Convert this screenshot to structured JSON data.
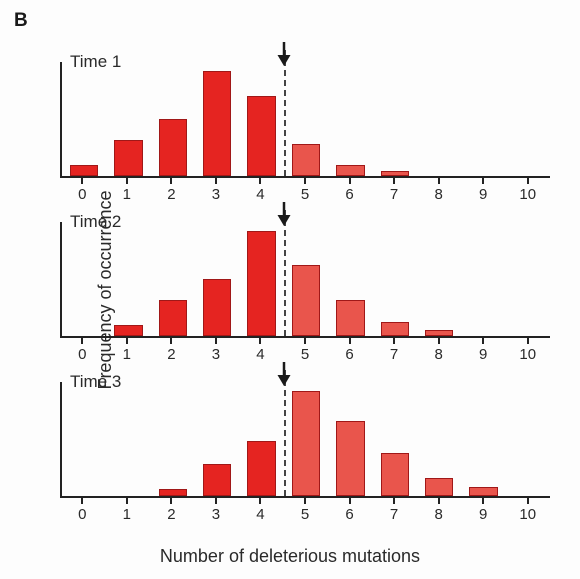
{
  "panel_letter": "B",
  "ylabel_text": "Frequency  of occurrence",
  "xlabel_text": "Number of deleterious mutations",
  "axis_color": "#222222",
  "background_color": "#fdfdfd",
  "bar_border_color": "#a01818",
  "bar_fill_left": "#e52421",
  "bar_fill_right": "#e9554c",
  "categories": [
    "0",
    "1",
    "2",
    "3",
    "4",
    "5",
    "6",
    "7",
    "8",
    "9",
    "10"
  ],
  "divider_index": 4.5,
  "ymax": 100,
  "font_family": "Arial",
  "tick_fontsize": 15,
  "label_fontsize": 18,
  "time_fontsize": 17,
  "panel_fontsize": 19,
  "charts": [
    {
      "time_label": "Time 1",
      "values": [
        10,
        32,
        50,
        92,
        70,
        28,
        10,
        4,
        0,
        0,
        0
      ]
    },
    {
      "time_label": "Time 2",
      "values": [
        0,
        10,
        32,
        50,
        92,
        62,
        32,
        12,
        5,
        0,
        0
      ]
    },
    {
      "time_label": "Time 3",
      "values": [
        0,
        0,
        6,
        28,
        48,
        92,
        66,
        38,
        16,
        8,
        0
      ]
    }
  ]
}
